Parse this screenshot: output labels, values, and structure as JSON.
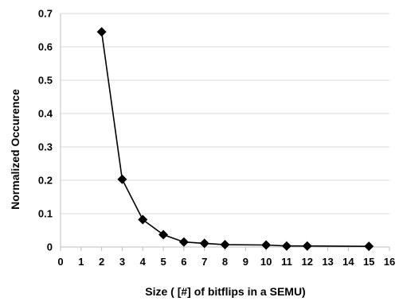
{
  "chart_data": {
    "type": "line",
    "xlabel": "Size ( [#] of bitflips in a SEMU)",
    "ylabel": "Normalized Occurence",
    "xlim": [
      0,
      16
    ],
    "ylim": [
      0,
      0.7
    ],
    "x_ticks": [
      0,
      1,
      2,
      3,
      4,
      5,
      6,
      7,
      8,
      9,
      10,
      11,
      12,
      13,
      14,
      15,
      16
    ],
    "y_ticks": [
      0,
      0.1,
      0.2,
      0.3,
      0.4,
      0.5,
      0.6,
      0.7
    ],
    "x_tick_labels": [
      "0",
      "1",
      "2",
      "3",
      "4",
      "5",
      "6",
      "7",
      "8",
      "9",
      "10",
      "11",
      "12",
      "13",
      "14",
      "15",
      "16"
    ],
    "y_tick_labels": [
      "0",
      "0.1",
      "0.2",
      "0.3",
      "0.4",
      "0.5",
      "0.6",
      "0.7"
    ],
    "grid": "horizontal",
    "marker": "diamond",
    "line_color": "#000000",
    "series": [
      {
        "x": [
          2,
          3,
          4,
          5,
          6,
          7,
          8,
          10,
          11,
          12,
          15
        ],
        "y": [
          0.645,
          0.203,
          0.082,
          0.037,
          0.015,
          0.011,
          0.007,
          0.006,
          0.003,
          0.003,
          0.002
        ]
      }
    ]
  }
}
